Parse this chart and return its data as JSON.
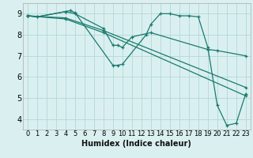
{
  "xlabel": "Humidex (Indice chaleur)",
  "bg_color": "#daf0f0",
  "grid_color": "#b8dada",
  "line_color": "#1a7a6e",
  "xlim": [
    -0.5,
    23.5
  ],
  "ylim": [
    3.5,
    9.5
  ],
  "yticks": [
    4,
    5,
    6,
    7,
    8,
    9
  ],
  "xticks": [
    0,
    1,
    2,
    3,
    4,
    5,
    6,
    7,
    8,
    9,
    10,
    11,
    12,
    13,
    14,
    15,
    16,
    17,
    18,
    19,
    20,
    21,
    22,
    23
  ],
  "lines": [
    {
      "x": [
        0,
        1,
        4,
        4.5,
        5,
        9,
        9.5,
        10,
        12.5,
        13,
        14,
        15,
        16,
        17,
        18,
        19,
        20,
        21,
        22,
        23
      ],
      "y": [
        8.9,
        8.85,
        9.1,
        9.15,
        9.05,
        6.55,
        6.55,
        6.6,
        8.0,
        8.5,
        9.0,
        9.0,
        8.9,
        8.9,
        8.85,
        7.4,
        4.65,
        3.7,
        3.8,
        5.2
      ]
    },
    {
      "x": [
        0,
        1,
        4,
        5,
        8,
        9,
        9.5,
        10,
        11,
        13,
        19,
        20,
        23
      ],
      "y": [
        8.9,
        8.85,
        9.1,
        9.0,
        8.3,
        7.5,
        7.5,
        7.4,
        7.9,
        8.1,
        7.3,
        7.25,
        7.0
      ]
    },
    {
      "x": [
        0,
        4,
        8,
        23
      ],
      "y": [
        8.9,
        8.8,
        8.2,
        5.5
      ]
    },
    {
      "x": [
        0,
        4,
        8,
        23
      ],
      "y": [
        8.9,
        8.75,
        8.1,
        5.1
      ]
    }
  ]
}
